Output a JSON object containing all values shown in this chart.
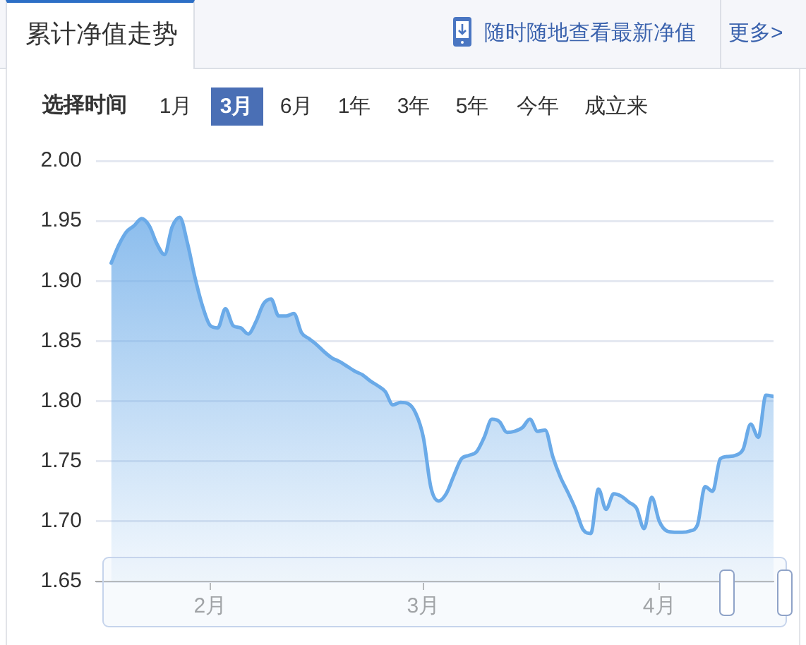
{
  "chart_data": {
    "type": "area",
    "title": "累计净值走势",
    "annotations": [
      "随时随地查看最新净值",
      "更多>",
      "选择时间",
      "1月",
      "3月",
      "6月",
      "1年",
      "3年",
      "5年",
      "今年",
      "成立来"
    ],
    "x": [
      "--01-19",
      "--01-20",
      "--01-21",
      "--01-22",
      "--01-23",
      "--01-24",
      "--01-25",
      "--01-26",
      "--01-27",
      "--01-28",
      "--01-29",
      "--01-30",
      "--01-31",
      "--02-01",
      "--02-02",
      "--02-03",
      "--02-04",
      "--02-05",
      "--02-06",
      "--02-07",
      "--02-08",
      "--02-09",
      "--02-10",
      "--02-11",
      "--02-12",
      "--02-13",
      "--02-14",
      "--02-15",
      "--02-16",
      "--02-17",
      "--02-18",
      "--02-19",
      "--02-20",
      "--02-21",
      "--02-22",
      "--02-23",
      "--02-24",
      "--02-25",
      "--02-26",
      "--02-27",
      "--02-28",
      "--03-01",
      "--03-02",
      "--03-03",
      "--03-04",
      "--03-05",
      "--03-06",
      "--03-07",
      "--03-08",
      "--03-09",
      "--03-10",
      "--03-11",
      "--03-12",
      "--03-13",
      "--03-14",
      "--03-15",
      "--03-16",
      "--03-17",
      "--03-18",
      "--03-19",
      "--03-20",
      "--03-21",
      "--03-22",
      "--03-23",
      "--03-24",
      "--03-25",
      "--03-26",
      "--03-27",
      "--03-28",
      "--03-29",
      "--03-30",
      "--03-31",
      "--04-01",
      "--04-02",
      "--04-03",
      "--04-04",
      "--04-05",
      "--04-06",
      "--04-07",
      "--04-08",
      "--04-09",
      "--04-10",
      "--04-11",
      "--04-12",
      "--04-13",
      "--04-14",
      "--04-15",
      "--04-16"
    ],
    "values": [
      1.915,
      1.93,
      1.941,
      1.946,
      1.952,
      1.946,
      1.931,
      1.922,
      1.945,
      1.953,
      1.932,
      1.903,
      1.879,
      1.863,
      1.861,
      1.877,
      1.863,
      1.861,
      1.856,
      1.866,
      1.881,
      1.885,
      1.871,
      1.871,
      1.873,
      1.857,
      1.852,
      1.847,
      1.841,
      1.836,
      1.833,
      1.829,
      1.825,
      1.822,
      1.817,
      1.813,
      1.808,
      1.797,
      1.799,
      1.798,
      1.79,
      1.77,
      1.728,
      1.717,
      1.723,
      1.738,
      1.752,
      1.755,
      1.758,
      1.77,
      1.785,
      1.783,
      1.774,
      1.775,
      1.778,
      1.785,
      1.775,
      1.776,
      1.754,
      1.737,
      1.724,
      1.71,
      1.693,
      1.69,
      1.727,
      1.71,
      1.723,
      1.721,
      1.716,
      1.711,
      1.694,
      1.72,
      1.7,
      1.692,
      1.691,
      1.691,
      1.692,
      1.697,
      1.729,
      1.725,
      1.752,
      1.754,
      1.755,
      1.76,
      1.781,
      1.77,
      1.805,
      1.804
    ],
    "color": "#6aaae8",
    "xlim": [
      "--01-17",
      "--04-16"
    ],
    "xticks": [
      {
        "value": "--02-01",
        "label": "2月"
      },
      {
        "value": "--03-01",
        "label": "3月"
      },
      {
        "value": "--04-01",
        "label": "4月"
      }
    ],
    "ylim": [
      1.65,
      2.0
    ],
    "yticks": [
      1.65,
      {
        "value": 1.7,
        "label": "1.70"
      },
      1.75,
      {
        "value": 1.8,
        "label": "1.80"
      },
      1.85,
      {
        "value": 1.9,
        "label": "1.90"
      },
      1.95,
      {
        "value": 2.0,
        "label": "2.00"
      }
    ],
    "grid": "y",
    "legend": false
  }
}
